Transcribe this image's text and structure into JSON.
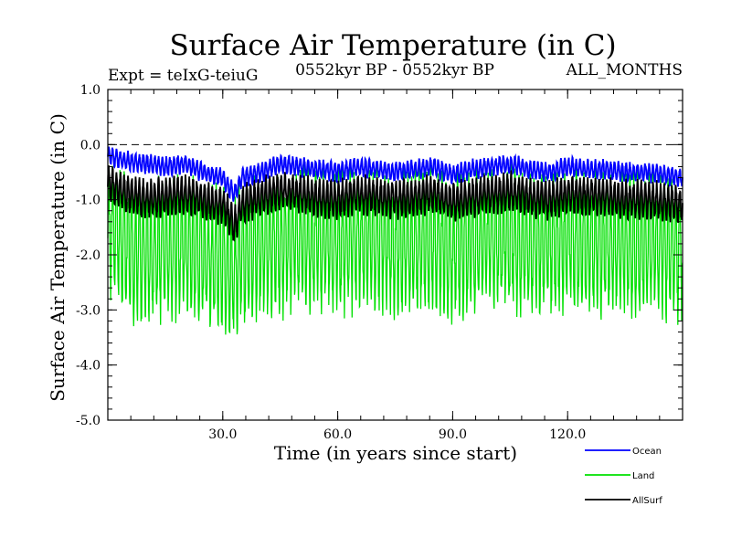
{
  "chart_data": {
    "type": "line",
    "title": "Surface Air Temperature (in C)",
    "subtitle_left": "Expt = teIxG-teiuG",
    "subtitle_center": "0552kyr BP - 0552kyr BP",
    "subtitle_right": "ALL_MONTHS",
    "xlabel": "Time (in years since start)",
    "ylabel": "Surface Air Temperature (in C)",
    "xlim": [
      0,
      150
    ],
    "ylim": [
      -5.0,
      1.0
    ],
    "x_ticks": [
      30,
      60,
      90,
      120
    ],
    "x_tick_labels": [
      "30.0",
      "60.0",
      "90.0",
      "120.0"
    ],
    "y_ticks": [
      1.0,
      0.0,
      -1.0,
      -2.0,
      -3.0,
      -4.0,
      -5.0
    ],
    "y_tick_labels": [
      "1.0",
      "0.0",
      "-1.0",
      "-2.0",
      "-3.0",
      "-4.0",
      "-5.0"
    ],
    "reference_line": 0.0,
    "legend_position": "bottom-right",
    "x": [
      0,
      5,
      10,
      15,
      20,
      25,
      30,
      33,
      35,
      40,
      45,
      50,
      55,
      60,
      65,
      70,
      75,
      80,
      85,
      90,
      95,
      100,
      105,
      110,
      115,
      120,
      125,
      130,
      135,
      140,
      145,
      150
    ],
    "series": [
      {
        "name": "Ocean",
        "color": "#0000ff",
        "values": [
          -0.2,
          -0.3,
          -0.35,
          -0.4,
          -0.35,
          -0.5,
          -0.6,
          -0.9,
          -0.6,
          -0.5,
          -0.35,
          -0.4,
          -0.45,
          -0.5,
          -0.4,
          -0.45,
          -0.5,
          -0.45,
          -0.4,
          -0.55,
          -0.45,
          -0.4,
          -0.35,
          -0.45,
          -0.5,
          -0.4,
          -0.45,
          -0.45,
          -0.5,
          -0.5,
          -0.55,
          -0.6
        ],
        "amplitude": 0.15
      },
      {
        "name": "Land",
        "color": "#00e000",
        "values": [
          -1.5,
          -1.8,
          -2.0,
          -1.9,
          -1.8,
          -2.0,
          -2.1,
          -2.3,
          -2.0,
          -1.8,
          -1.8,
          -1.7,
          -1.75,
          -1.8,
          -1.7,
          -1.75,
          -1.8,
          -1.75,
          -1.7,
          -1.85,
          -1.75,
          -1.7,
          -1.7,
          -1.75,
          -1.8,
          -1.7,
          -1.75,
          -1.75,
          -1.8,
          -1.8,
          -1.85,
          -1.9
        ],
        "amplitude": 1.1
      },
      {
        "name": "AllSurf",
        "color": "#000000",
        "values": [
          -0.7,
          -0.9,
          -1.0,
          -0.95,
          -0.9,
          -1.0,
          -1.1,
          -1.5,
          -1.1,
          -0.95,
          -0.85,
          -0.9,
          -0.95,
          -1.0,
          -0.9,
          -0.95,
          -1.0,
          -0.95,
          -0.9,
          -1.05,
          -0.95,
          -0.9,
          -0.85,
          -0.95,
          -1.0,
          -0.9,
          -0.95,
          -0.95,
          -1.0,
          -1.0,
          -1.05,
          -1.1
        ],
        "amplitude": 0.3
      }
    ]
  }
}
